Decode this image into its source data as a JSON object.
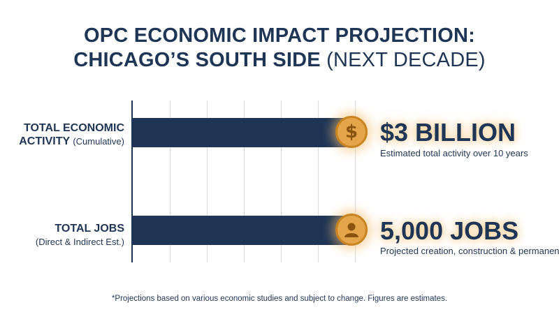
{
  "title": {
    "line1": "OPC ECONOMIC IMPACT PROJECTION:",
    "line2_main": "CHICAGO’S SOUTH SIDE",
    "line2_light": "(NEXT DECADE)"
  },
  "chart_data": {
    "type": "bar",
    "orientation": "horizontal",
    "categories": [
      "TOTAL ECONOMIC ACTIVITY (Cumulative)",
      "TOTAL JOBS (Direct & Indirect Est.)"
    ],
    "series": [
      {
        "values": [
          3000000000,
          5000
        ]
      }
    ],
    "grid": true,
    "bars_equal_length": true
  },
  "rows": [
    {
      "label_main_1": "TOTAL ECONOMIC",
      "label_main_2": "ACTIVITY",
      "label_sub": "(Cumulative)",
      "icon": "dollar-icon",
      "icon_glyph": "$",
      "value": "$3 BILLION",
      "caption": "Estimated total activity over 10 years"
    },
    {
      "label_main": "TOTAL JOBS",
      "label_sub": "(Direct & Indirect Est.)",
      "icon": "person-icon",
      "value": "5,000 JOBS",
      "caption": "Projected creation, construction & permanent"
    }
  ],
  "footnote": "*Projections based on various economic studies and subject to change. Figures are estimates.",
  "colors": {
    "navy": "#1f3556",
    "gold": "#e5a54a",
    "grid": "#d7dbe0"
  }
}
